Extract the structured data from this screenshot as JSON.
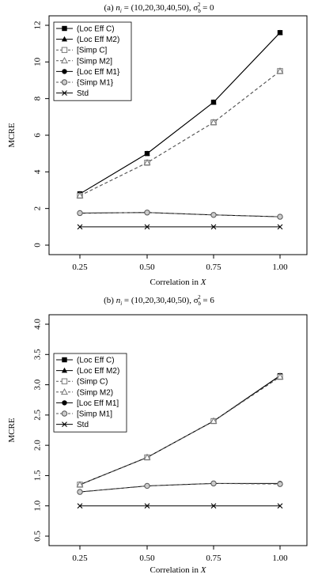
{
  "chart_data": [
    {
      "type": "line",
      "title": {
        "prefix": "(a) ",
        "n_sub": "i",
        "mid": " = (10,20,30,40,50), σ",
        "sig_sub": "b",
        "sig_sup": "2",
        "suffix": " = 0"
      },
      "xlabel": "Correlation in ",
      "xlabel_italic": "X",
      "ylabel": "MCRE",
      "x": [
        0.25,
        0.5,
        0.75,
        1.0
      ],
      "x_tick_labels": [
        "0.25",
        "0.50",
        "0.75",
        "1.00"
      ],
      "ylim": [
        0,
        12
      ],
      "y_ticks": [
        0,
        2,
        4,
        6,
        8,
        10,
        12
      ],
      "y_tick_labels": [
        "0",
        "2",
        "4",
        "6",
        "8",
        "10",
        "12"
      ],
      "legend_position": "top-left",
      "series": [
        {
          "name": "(Loc Eff C)",
          "values": [
            2.8,
            5.0,
            7.8,
            11.6
          ],
          "marker": "square",
          "dash": "solid"
        },
        {
          "name": "(Loc Eff M2)",
          "values": [
            2.8,
            5.0,
            7.8,
            11.6
          ],
          "marker": "triangle",
          "dash": "solid"
        },
        {
          "name": "[Simp C]",
          "values": [
            2.7,
            4.5,
            6.7,
            9.5
          ],
          "marker": "square-open",
          "dash": "dashed"
        },
        {
          "name": "[Simp M2]",
          "values": [
            2.7,
            4.5,
            6.7,
            9.5
          ],
          "marker": "triangle-open",
          "dash": "dashed"
        },
        {
          "name": "{Loc Eff M1}",
          "values": [
            1.75,
            1.78,
            1.65,
            1.55
          ],
          "marker": "circle",
          "dash": "solid"
        },
        {
          "name": "{Simp M1}",
          "values": [
            1.75,
            1.78,
            1.65,
            1.55
          ],
          "marker": "circle-open",
          "dash": "dashed"
        },
        {
          "name": "Std",
          "values": [
            1.0,
            1.0,
            1.0,
            1.0
          ],
          "marker": "x",
          "dash": "solid"
        }
      ]
    },
    {
      "type": "line",
      "title": {
        "prefix": "(b) ",
        "n_sub": "i",
        "mid": " = (10,20,30,40,50), σ",
        "sig_sub": "b",
        "sig_sup": "2",
        "suffix": " = 6"
      },
      "xlabel": "Correlation in ",
      "xlabel_italic": "X",
      "ylabel": "MCRE",
      "x": [
        0.25,
        0.5,
        0.75,
        1.0
      ],
      "x_tick_labels": [
        "0.25",
        "0.50",
        "0.75",
        "1.00"
      ],
      "ylim": [
        0.5,
        4.0
      ],
      "y_ticks": [
        0.5,
        1.0,
        1.5,
        2.0,
        2.5,
        3.0,
        3.5,
        4.0
      ],
      "y_tick_labels": [
        "0.5",
        "1.0",
        "1.5",
        "2.0",
        "2.5",
        "3.0",
        "3.5",
        "4.0"
      ],
      "legend_position": "middle-left",
      "series": [
        {
          "name": "(Loc Eff C)",
          "values": [
            1.35,
            1.8,
            2.4,
            3.15
          ],
          "marker": "square",
          "dash": "solid"
        },
        {
          "name": "(Loc Eff M2)",
          "values": [
            1.35,
            1.8,
            2.4,
            3.15
          ],
          "marker": "triangle",
          "dash": "solid"
        },
        {
          "name": "(Simp C)",
          "values": [
            1.35,
            1.8,
            2.4,
            3.13
          ],
          "marker": "square-open",
          "dash": "dashed"
        },
        {
          "name": "(Simp M2)",
          "values": [
            1.35,
            1.8,
            2.4,
            3.13
          ],
          "marker": "triangle-open",
          "dash": "dashed"
        },
        {
          "name": "[Loc Eff M1]",
          "values": [
            1.23,
            1.33,
            1.37,
            1.37
          ],
          "marker": "circle",
          "dash": "solid"
        },
        {
          "name": "[Simp M1]",
          "values": [
            1.23,
            1.33,
            1.37,
            1.36
          ],
          "marker": "circle-open",
          "dash": "dashed"
        },
        {
          "name": "Std",
          "values": [
            1.0,
            1.0,
            1.0,
            1.0
          ],
          "marker": "x",
          "dash": "solid"
        }
      ]
    }
  ]
}
